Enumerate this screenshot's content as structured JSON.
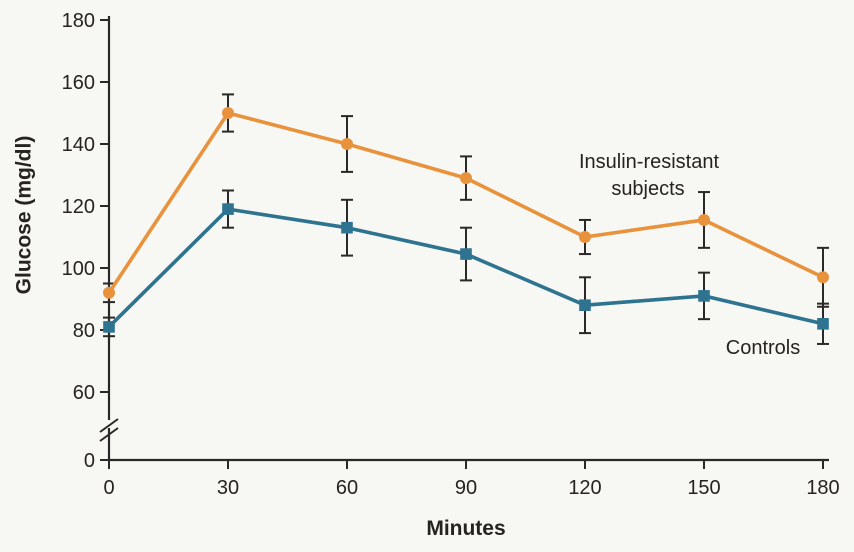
{
  "figure": {
    "background": "#f7f7f4",
    "axis_color": "#2b2927",
    "text_color": "#262321",
    "error_bar_color": "#2b2927"
  },
  "chart_data": {
    "type": "line",
    "title": "",
    "xlabel": "Minutes",
    "ylabel": "Glucose (mg/dl)",
    "x": [
      0,
      30,
      60,
      90,
      120,
      150,
      180
    ],
    "x_tick_labels": [
      "0",
      "30",
      "60",
      "90",
      "120",
      "150",
      "180"
    ],
    "y_tick_labels": [
      "0",
      "60",
      "80",
      "100",
      "120",
      "140",
      "160",
      "180"
    ],
    "y_tick_values": [
      0,
      60,
      80,
      100,
      120,
      140,
      160,
      180
    ],
    "xlim": [
      0,
      180
    ],
    "ylim": [
      60,
      180
    ],
    "y_axis_break_between": [
      0,
      60
    ],
    "grid": false,
    "legend_position": "inline-annotations",
    "error_bars": true,
    "series": [
      {
        "name": "Insulin-resistant subjects",
        "label_lines": [
          "Insulin-resistant",
          "subjects"
        ],
        "color": "#e8923c",
        "marker": "circle",
        "values": [
          92,
          150,
          140,
          129,
          110,
          115.5,
          97
        ],
        "errors": [
          3,
          6,
          9,
          7,
          5.5,
          9,
          9.5
        ]
      },
      {
        "name": "Controls",
        "label_lines": [
          "Controls"
        ],
        "color": "#2e7390",
        "marker": "square",
        "values": [
          81,
          119,
          113,
          104.5,
          88,
          91,
          82
        ],
        "errors": [
          3,
          6,
          9,
          8.5,
          9,
          7.5,
          6.5
        ]
      }
    ]
  }
}
